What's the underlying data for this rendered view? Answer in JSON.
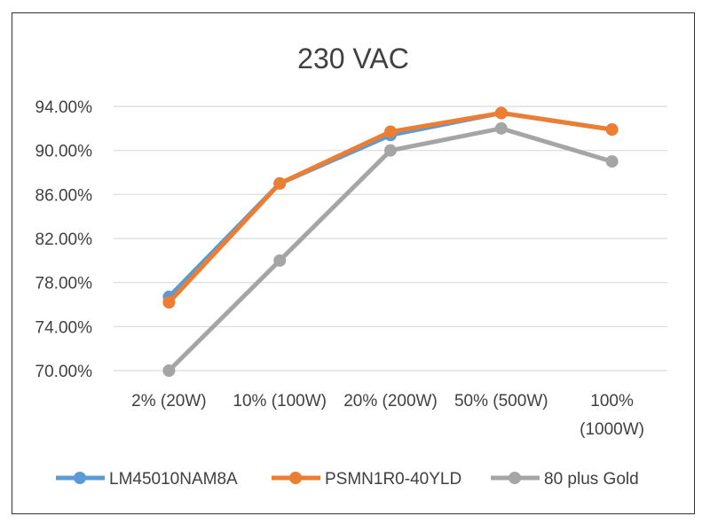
{
  "chart_data": {
    "type": "line",
    "title": "230 VAC",
    "xlabel": "",
    "ylabel": "",
    "categories": [
      [
        "2% (20W)"
      ],
      [
        "10% (100W)"
      ],
      [
        "20% (200W)"
      ],
      [
        "50% (500W)"
      ],
      [
        "100%",
        "(1000W)"
      ]
    ],
    "y_ticks": [
      "70.00%",
      "74.00%",
      "78.00%",
      "82.00%",
      "86.00%",
      "90.00%",
      "94.00%"
    ],
    "ylim": [
      70,
      94
    ],
    "grid": true,
    "legend_position": "bottom",
    "series": [
      {
        "name": "LM45010NAM8A",
        "color": "#5b9bd5",
        "values": [
          76.7,
          87.0,
          91.4,
          93.4,
          91.9
        ]
      },
      {
        "name": "PSMN1R0-40YLD",
        "color": "#ed7d31",
        "values": [
          76.2,
          87.0,
          91.7,
          93.4,
          91.9
        ]
      },
      {
        "name": "80 plus Gold",
        "color": "#a5a5a5",
        "values": [
          70.0,
          80.0,
          90.0,
          92.0,
          89.0
        ]
      }
    ]
  }
}
